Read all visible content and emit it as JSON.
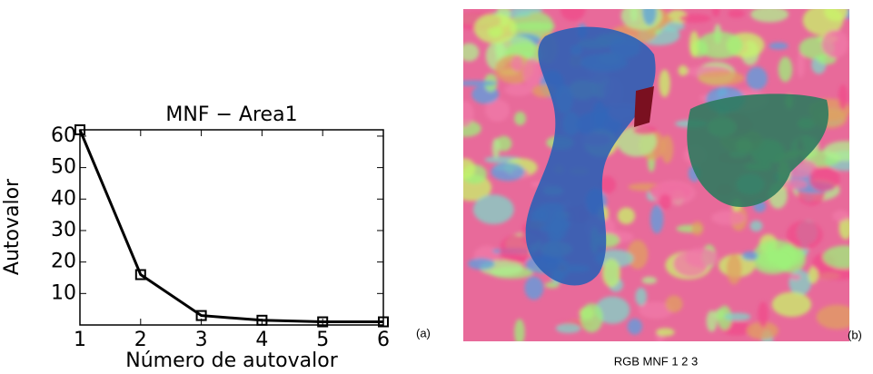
{
  "chart_data": {
    "type": "line",
    "title": "MNF − Area1",
    "x_label": "Número de autovalor",
    "y_label": "Autovalor",
    "x": [
      1,
      2,
      3,
      4,
      5,
      6
    ],
    "series": [
      {
        "name": "Autovalor",
        "color": "#000000",
        "values": [
          62,
          16,
          3,
          1.5,
          1,
          1
        ]
      }
    ],
    "xlim": [
      1,
      6
    ],
    "xticks": [
      1,
      2,
      3,
      4,
      5,
      6
    ],
    "ylim": [
      0,
      62
    ],
    "yticks": [
      10,
      20,
      30,
      40,
      50,
      60
    ],
    "marker": "square"
  },
  "chart_panel_label": "(a)",
  "image": {
    "panel_label": "(b)",
    "caption": "RGB MNF 1 2 3"
  }
}
